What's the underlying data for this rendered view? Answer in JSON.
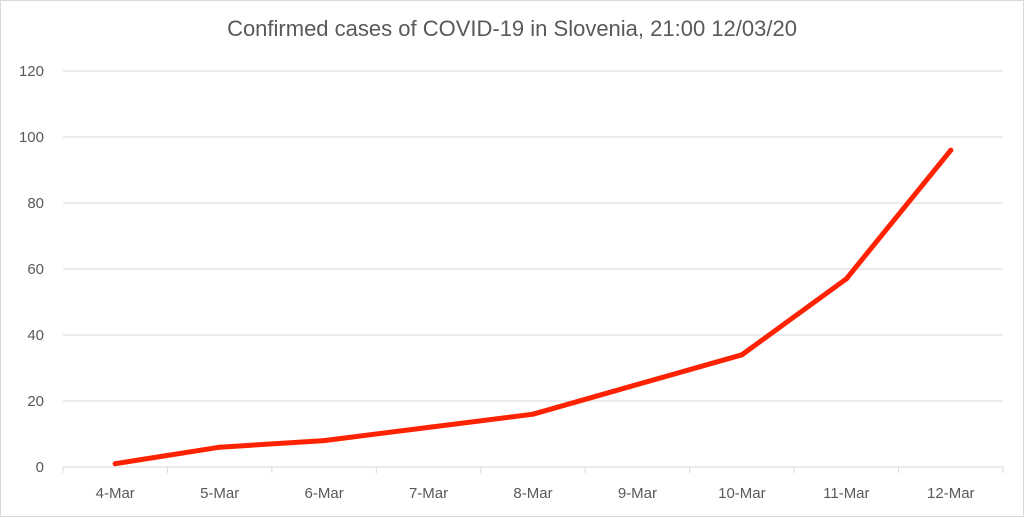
{
  "chart_data": {
    "type": "line",
    "title": "Confirmed cases of COVID-19 in Slovenia, 21:00 12/03/20",
    "xlabel": "",
    "ylabel": "",
    "categories": [
      "4-Mar",
      "5-Mar",
      "6-Mar",
      "7-Mar",
      "8-Mar",
      "9-Mar",
      "10-Mar",
      "11-Mar",
      "12-Mar"
    ],
    "series": [
      {
        "values": [
          1,
          6,
          8,
          12,
          16,
          25,
          34,
          57,
          96
        ],
        "color": "#ff2200"
      }
    ],
    "ylim": [
      0,
      120
    ],
    "yticks": [
      0,
      20,
      40,
      60,
      80,
      100,
      120
    ],
    "grid": true,
    "legend": "none"
  }
}
